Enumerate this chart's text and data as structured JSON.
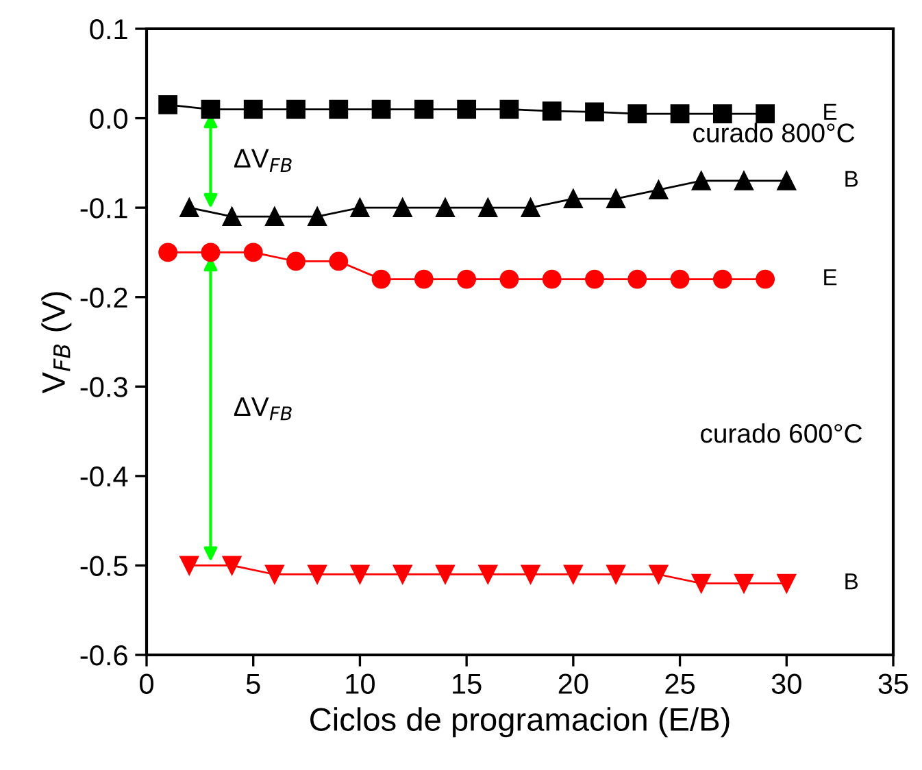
{
  "chart_data": {
    "type": "line",
    "xlabel": "Ciclos de programacion (E/B)",
    "ylabel": "V$_{FB}$ (V)",
    "xlim": [
      0,
      35
    ],
    "xticks": [
      0,
      5,
      10,
      15,
      20,
      25,
      30,
      35
    ],
    "ylim": [
      -0.6,
      0.1
    ],
    "yticks": [
      -0.6,
      -0.5,
      -0.4,
      -0.3,
      -0.2,
      -0.1,
      {
        "value": 0.0,
        "label": "0.0"
      },
      0.1
    ],
    "grid": false,
    "legend": false,
    "series": [
      {
        "name": "E",
        "color": "#000000",
        "marker": "square",
        "x": [
          1,
          3,
          5,
          7,
          9,
          11,
          13,
          15,
          17,
          19,
          21,
          23,
          25,
          27,
          29
        ],
        "values": [
          0.015,
          0.01,
          0.01,
          0.01,
          0.01,
          0.01,
          0.01,
          0.01,
          0.01,
          0.008,
          0.007,
          0.005,
          0.005,
          0.005,
          0.005
        ]
      },
      {
        "name": "B",
        "color": "#000000",
        "marker": "triangle",
        "x": [
          2,
          4,
          6,
          8,
          10,
          12,
          14,
          16,
          18,
          20,
          22,
          24,
          26,
          28,
          30
        ],
        "values": [
          -0.1,
          -0.11,
          -0.11,
          -0.11,
          -0.1,
          -0.1,
          -0.1,
          -0.1,
          -0.1,
          -0.09,
          -0.09,
          -0.08,
          -0.07,
          -0.07,
          -0.07
        ]
      },
      {
        "name": "E",
        "color": "#ff0000",
        "marker": "circle",
        "x": [
          1,
          3,
          5,
          7,
          9,
          11,
          13,
          15,
          17,
          19,
          21,
          23,
          25,
          27,
          29
        ],
        "values": [
          -0.15,
          -0.15,
          -0.15,
          -0.16,
          -0.16,
          -0.18,
          -0.18,
          -0.18,
          -0.18,
          -0.18,
          -0.18,
          -0.18,
          -0.18,
          -0.18,
          -0.18
        ]
      },
      {
        "name": "B",
        "color": "#ff0000",
        "marker": "triangle_down",
        "x": [
          2,
          4,
          6,
          8,
          10,
          12,
          14,
          16,
          18,
          20,
          22,
          24,
          26,
          28,
          30
        ],
        "values": [
          -0.5,
          -0.5,
          -0.51,
          -0.51,
          -0.51,
          -0.51,
          -0.51,
          -0.51,
          -0.51,
          -0.51,
          -0.51,
          -0.51,
          -0.52,
          -0.52,
          -0.52
        ]
      }
    ],
    "annotations": [
      "ΔV$_{FB}$",
      "ΔV$_{FB}$",
      "curado 800°C",
      "curado 600°C"
    ]
  }
}
